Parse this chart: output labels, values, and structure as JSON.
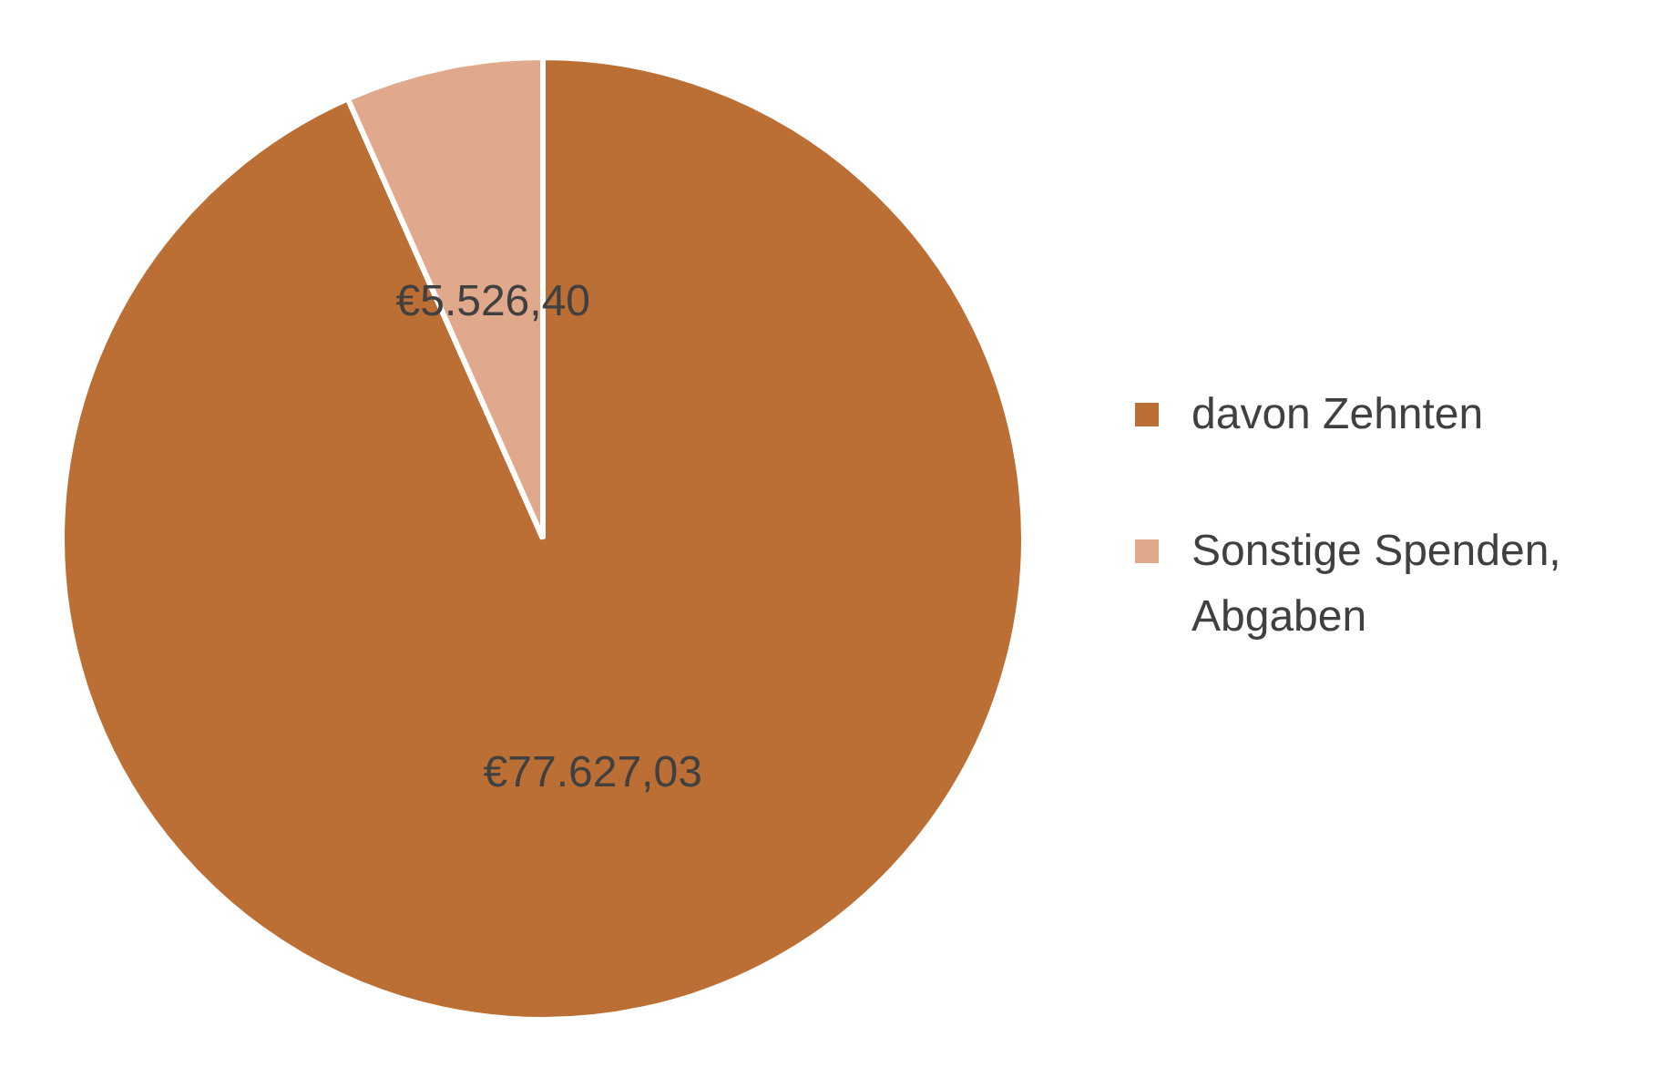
{
  "chart_data": {
    "type": "pie",
    "categories": [
      "davon Zehnten",
      "Sonstige Spenden, Abgaben"
    ],
    "values": [
      77627.03,
      5526.4
    ],
    "colors": [
      "#bb6f35",
      "#e0a98c"
    ],
    "value_labels": [
      "€77.627,03",
      "€5.526,40"
    ],
    "legend": "right"
  }
}
